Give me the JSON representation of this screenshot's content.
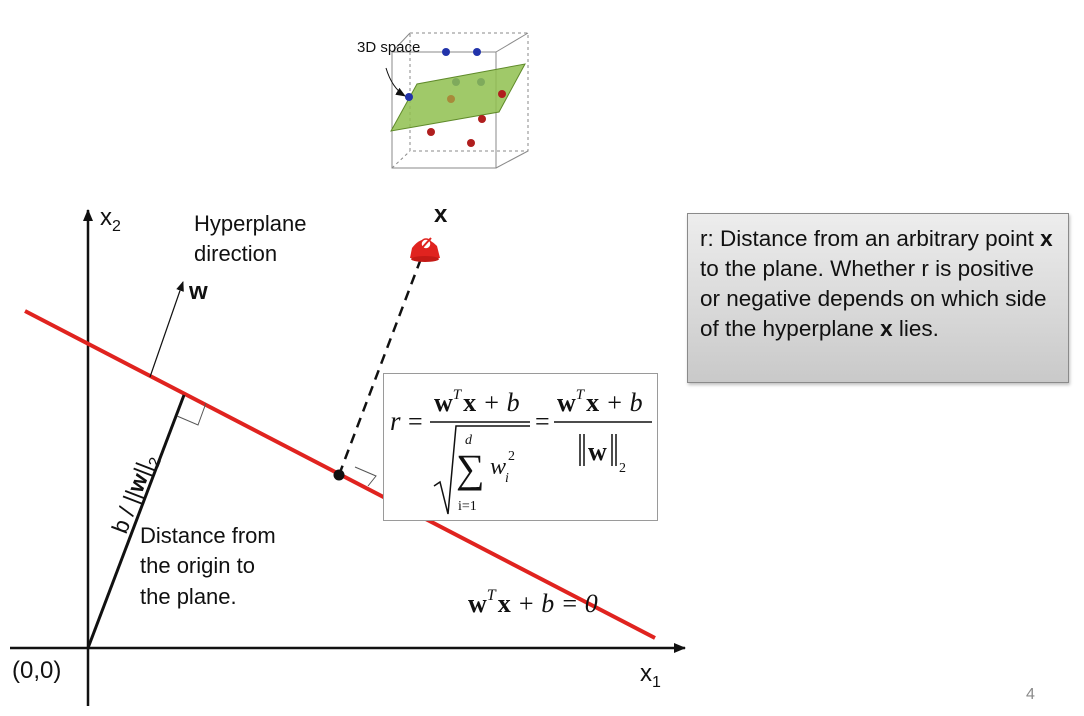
{
  "cube": {
    "label": "3D space",
    "colors": {
      "plane": "#8fbf4f",
      "blue_point": "#2233aa",
      "red_point": "#b01e1e",
      "edge": "#8a8a8a"
    }
  },
  "axes": {
    "x_label_base": "x",
    "x_label_sub": "1",
    "y_label_base": "x",
    "y_label_sub": "2",
    "origin_label": "(0,0)"
  },
  "hyperplane": {
    "color": "#e0231f",
    "equation": {
      "w": "w",
      "t": "T",
      "x": "x",
      "rest": " + b = 0"
    }
  },
  "normal": {
    "title_line1": "Hyperplane",
    "title_line2": "direction",
    "vector_label": "w"
  },
  "point": {
    "label": "x"
  },
  "origin_distance": {
    "rotated_label": {
      "prefix": "b / ||",
      "bold": "w",
      "suffix": "||",
      "sub": "2"
    },
    "caption_lines": [
      "Distance from",
      "the origin to",
      "the plane."
    ]
  },
  "formula": {
    "r": "r",
    "eq": "=",
    "w": "w",
    "t": "T",
    "x": "x",
    "plus_b": " + b",
    "sum_top": "d",
    "sum_sym": "∑",
    "sum_bottom": "i=1",
    "w_i": "w",
    "i_sub": "i",
    "sq": "2",
    "norm_sub": "2"
  },
  "note": {
    "part1": "r: Distance from an arbitrary point ",
    "bold1": "x",
    "part2": " to the plane. Whether r is positive or negative depends on which side of the hyperplane ",
    "bold2": "x",
    "part3": " lies."
  },
  "page_number": "4"
}
